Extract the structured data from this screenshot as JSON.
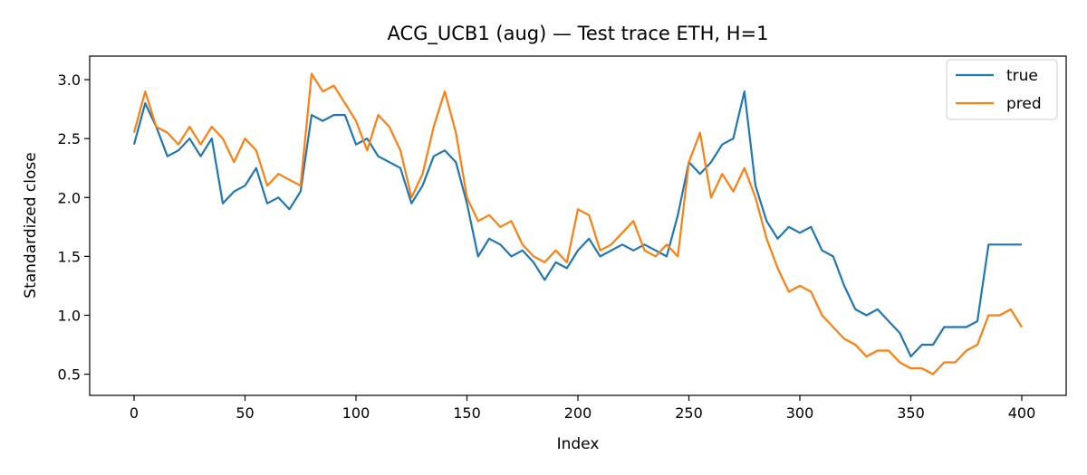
{
  "chart_data": {
    "type": "line",
    "title": "ACG_UCB1 (aug) — Test trace ETH, H=1",
    "xlabel": "Index",
    "ylabel": "Standardized close",
    "xlim": [
      -20,
      420
    ],
    "ylim": [
      0.32,
      3.2
    ],
    "xticks": [
      0,
      50,
      100,
      150,
      200,
      250,
      300,
      350,
      400
    ],
    "yticks": [
      0.5,
      1.0,
      1.5,
      2.0,
      2.5,
      3.0
    ],
    "xtick_labels": [
      "0",
      "50",
      "100",
      "150",
      "200",
      "250",
      "300",
      "350",
      "400"
    ],
    "ytick_labels": [
      "0.5",
      "1.0",
      "1.5",
      "2.0",
      "2.5",
      "3.0"
    ],
    "grid": false,
    "legend_position": "top-right",
    "series": [
      {
        "name": "true",
        "color": "#1f77b4",
        "x": [
          0,
          5,
          10,
          15,
          20,
          25,
          30,
          35,
          40,
          45,
          50,
          55,
          60,
          65,
          70,
          75,
          80,
          85,
          90,
          95,
          100,
          105,
          110,
          115,
          120,
          125,
          130,
          135,
          140,
          145,
          150,
          155,
          160,
          165,
          170,
          175,
          180,
          185,
          190,
          195,
          200,
          205,
          210,
          215,
          220,
          225,
          230,
          235,
          240,
          245,
          250,
          255,
          260,
          265,
          270,
          275,
          280,
          285,
          290,
          295,
          300,
          305,
          310,
          315,
          320,
          325,
          330,
          335,
          340,
          345,
          350,
          355,
          360,
          365,
          370,
          375,
          380,
          385,
          390,
          395,
          400
        ],
        "values": [
          2.45,
          2.8,
          2.6,
          2.35,
          2.4,
          2.5,
          2.35,
          2.5,
          1.95,
          2.05,
          2.1,
          2.25,
          1.95,
          2.0,
          1.9,
          2.05,
          2.7,
          2.65,
          2.7,
          2.7,
          2.45,
          2.5,
          2.35,
          2.3,
          2.25,
          1.95,
          2.1,
          2.35,
          2.4,
          2.3,
          1.95,
          1.5,
          1.65,
          1.6,
          1.5,
          1.55,
          1.45,
          1.3,
          1.45,
          1.4,
          1.55,
          1.65,
          1.5,
          1.55,
          1.6,
          1.55,
          1.6,
          1.55,
          1.5,
          1.85,
          2.3,
          2.2,
          2.3,
          2.45,
          2.5,
          2.9,
          2.1,
          1.8,
          1.65,
          1.75,
          1.7,
          1.75,
          1.55,
          1.5,
          1.25,
          1.05,
          1.0,
          1.05,
          0.95,
          0.85,
          0.65,
          0.75,
          0.75,
          0.9,
          0.9,
          0.9,
          0.95,
          1.6,
          1.6,
          1.6,
          1.6
        ]
      },
      {
        "name": "pred",
        "color": "#ff7f0e",
        "x": [
          0,
          5,
          10,
          15,
          20,
          25,
          30,
          35,
          40,
          45,
          50,
          55,
          60,
          65,
          70,
          75,
          80,
          85,
          90,
          95,
          100,
          105,
          110,
          115,
          120,
          125,
          130,
          135,
          140,
          145,
          150,
          155,
          160,
          165,
          170,
          175,
          180,
          185,
          190,
          195,
          200,
          205,
          210,
          215,
          220,
          225,
          230,
          235,
          240,
          245,
          250,
          255,
          260,
          265,
          270,
          275,
          280,
          285,
          290,
          295,
          300,
          305,
          310,
          315,
          320,
          325,
          330,
          335,
          340,
          345,
          350,
          355,
          360,
          365,
          370,
          375,
          380,
          385,
          390,
          395,
          400
        ],
        "values": [
          2.55,
          2.9,
          2.6,
          2.55,
          2.45,
          2.6,
          2.45,
          2.6,
          2.5,
          2.3,
          2.5,
          2.4,
          2.1,
          2.2,
          2.15,
          2.1,
          3.05,
          2.9,
          2.95,
          2.8,
          2.65,
          2.4,
          2.7,
          2.6,
          2.4,
          2.0,
          2.2,
          2.6,
          2.9,
          2.55,
          2.0,
          1.8,
          1.85,
          1.75,
          1.8,
          1.6,
          1.5,
          1.45,
          1.55,
          1.45,
          1.9,
          1.85,
          1.55,
          1.6,
          1.7,
          1.8,
          1.55,
          1.5,
          1.6,
          1.5,
          2.3,
          2.55,
          2.0,
          2.2,
          2.05,
          2.25,
          2.0,
          1.65,
          1.4,
          1.2,
          1.25,
          1.2,
          1.0,
          0.9,
          0.8,
          0.75,
          0.65,
          0.7,
          0.7,
          0.6,
          0.55,
          0.55,
          0.5,
          0.6,
          0.6,
          0.7,
          0.75,
          1.0,
          1.0,
          1.05,
          0.9
        ]
      }
    ]
  }
}
